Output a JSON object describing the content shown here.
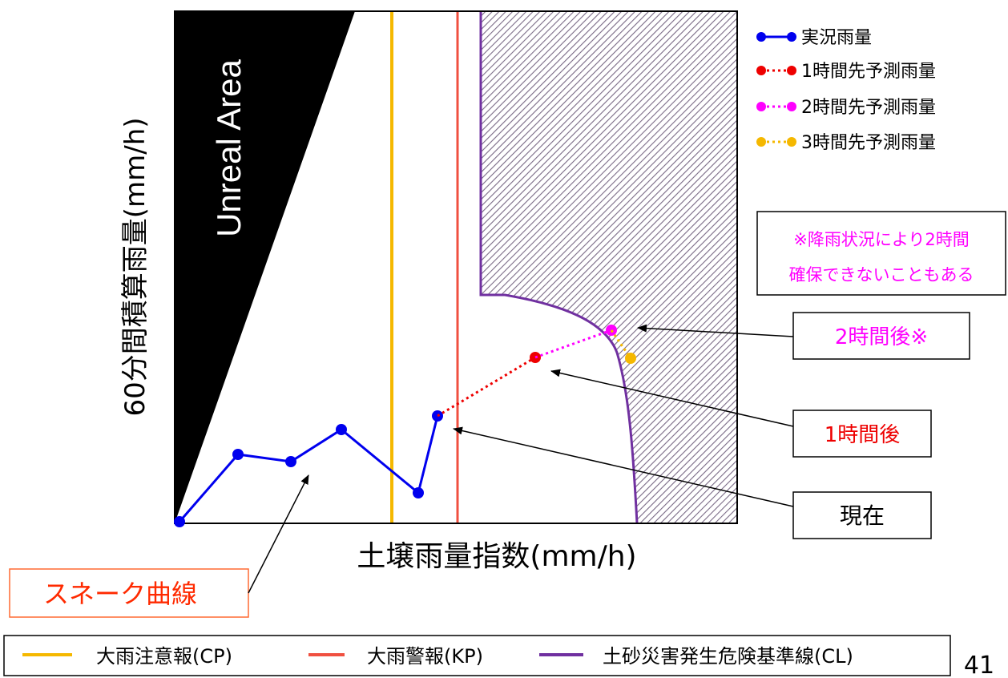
{
  "diagram": {
    "y_axis_label": "60分間積算雨量(mm/h)",
    "x_axis_label": "土壌雨量指数(mm/h)",
    "unreal_area_label": "Unreal Area",
    "series_legend": [
      {
        "label": "実況雨量",
        "color": "#0000ee",
        "style": "solid"
      },
      {
        "label": "1時間先予測雨量",
        "color": "#ee0000",
        "style": "dotted"
      },
      {
        "label": "2時間先予測雨量",
        "color": "#ff00ff",
        "style": "dotted"
      },
      {
        "label": "3時間先予測雨量",
        "color": "#f5b800",
        "style": "dotted"
      }
    ],
    "note": {
      "line1": "※降雨状況により2時間",
      "line2": "確保できないこともある",
      "color": "#ff00ff"
    },
    "callouts": {
      "two_hours": {
        "label": "2時間後※",
        "color": "#ff00ff"
      },
      "one_hour": {
        "label": "1時間後",
        "color": "#ee0000"
      },
      "now": {
        "label": "現在",
        "color": "#000000"
      },
      "snake": {
        "label": "スネーク曲線",
        "color": "#ff2a00"
      }
    },
    "line_legend": [
      {
        "label": "大雨注意報(CP)",
        "color": "#f5b800"
      },
      {
        "label": "大雨警報(KP)",
        "color": "#f05040"
      },
      {
        "label": "土砂災害発生危険基準線(CL)",
        "color": "#7030a0"
      }
    ],
    "page_number": "41"
  }
}
